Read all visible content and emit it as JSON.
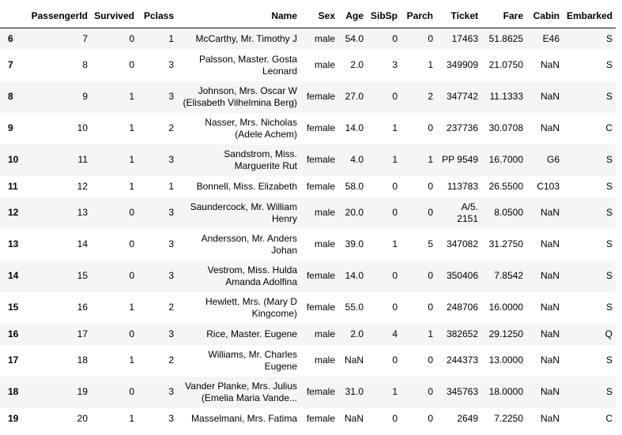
{
  "columns": [
    "",
    "PassengerId",
    "Survived",
    "Pclass",
    "Name",
    "Sex",
    "Age",
    "SibSp",
    "Parch",
    "Ticket",
    "Fare",
    "Cabin",
    "Embarked"
  ],
  "rows": [
    {
      "index": "6",
      "cells": [
        "7",
        "0",
        "1",
        "McCarthy, Mr. Timothy J",
        "male",
        "54.0",
        "0",
        "0",
        "17463",
        "51.8625",
        "E46",
        "S"
      ]
    },
    {
      "index": "7",
      "cells": [
        "8",
        "0",
        "3",
        "Palsson, Master. Gosta Leonard",
        "male",
        "2.0",
        "3",
        "1",
        "349909",
        "21.0750",
        "NaN",
        "S"
      ]
    },
    {
      "index": "8",
      "cells": [
        "9",
        "1",
        "3",
        "Johnson, Mrs. Oscar W (Elisabeth Vilhelmina Berg)",
        "female",
        "27.0",
        "0",
        "2",
        "347742",
        "11.1333",
        "NaN",
        "S"
      ]
    },
    {
      "index": "9",
      "cells": [
        "10",
        "1",
        "2",
        "Nasser, Mrs. Nicholas (Adele Achem)",
        "female",
        "14.0",
        "1",
        "0",
        "237736",
        "30.0708",
        "NaN",
        "C"
      ]
    },
    {
      "index": "10",
      "cells": [
        "11",
        "1",
        "3",
        "Sandstrom, Miss. Marguerite Rut",
        "female",
        "4.0",
        "1",
        "1",
        "PP 9549",
        "16.7000",
        "G6",
        "S"
      ]
    },
    {
      "index": "11",
      "cells": [
        "12",
        "1",
        "1",
        "Bonnell, Miss. Elizabeth",
        "female",
        "58.0",
        "0",
        "0",
        "113783",
        "26.5500",
        "C103",
        "S"
      ]
    },
    {
      "index": "12",
      "cells": [
        "13",
        "0",
        "3",
        "Saundercock, Mr. William Henry",
        "male",
        "20.0",
        "0",
        "0",
        "A/5. 2151",
        "8.0500",
        "NaN",
        "S"
      ]
    },
    {
      "index": "13",
      "cells": [
        "14",
        "0",
        "3",
        "Andersson, Mr. Anders Johan",
        "male",
        "39.0",
        "1",
        "5",
        "347082",
        "31.2750",
        "NaN",
        "S"
      ]
    },
    {
      "index": "14",
      "cells": [
        "15",
        "0",
        "3",
        "Vestrom, Miss. Hulda Amanda Adolfina",
        "female",
        "14.0",
        "0",
        "0",
        "350406",
        "7.8542",
        "NaN",
        "S"
      ]
    },
    {
      "index": "15",
      "cells": [
        "16",
        "1",
        "2",
        "Hewlett, Mrs. (Mary D Kingcome)",
        "female",
        "55.0",
        "0",
        "0",
        "248706",
        "16.0000",
        "NaN",
        "S"
      ]
    },
    {
      "index": "16",
      "cells": [
        "17",
        "0",
        "3",
        "Rice, Master. Eugene",
        "male",
        "2.0",
        "4",
        "1",
        "382652",
        "29.1250",
        "NaN",
        "Q"
      ]
    },
    {
      "index": "17",
      "cells": [
        "18",
        "1",
        "2",
        "Williams, Mr. Charles Eugene",
        "male",
        "NaN",
        "0",
        "0",
        "244373",
        "13.0000",
        "NaN",
        "S"
      ]
    },
    {
      "index": "18",
      "cells": [
        "19",
        "0",
        "3",
        "Vander Planke, Mrs. Julius (Emelia Maria Vande...",
        "female",
        "31.0",
        "1",
        "0",
        "345763",
        "18.0000",
        "NaN",
        "S"
      ]
    },
    {
      "index": "19",
      "cells": [
        "20",
        "1",
        "3",
        "Masselmani, Mrs. Fatima",
        "female",
        "NaN",
        "0",
        "0",
        "2649",
        "7.2250",
        "NaN",
        "C"
      ]
    }
  ]
}
